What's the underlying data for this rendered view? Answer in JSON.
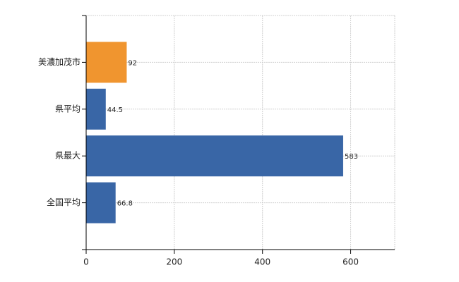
{
  "chart_data": {
    "type": "hbar",
    "categories": [
      "美濃加茂市",
      "県平均",
      "県最大",
      "全国平均"
    ],
    "values": [
      92,
      44.5,
      583,
      66.8
    ],
    "colors": [
      "#f0952f",
      "#3966a6",
      "#3966a6",
      "#3966a6"
    ],
    "xlim": [
      0,
      700
    ],
    "xticks": [
      0,
      200,
      400,
      600
    ],
    "grid": true
  }
}
